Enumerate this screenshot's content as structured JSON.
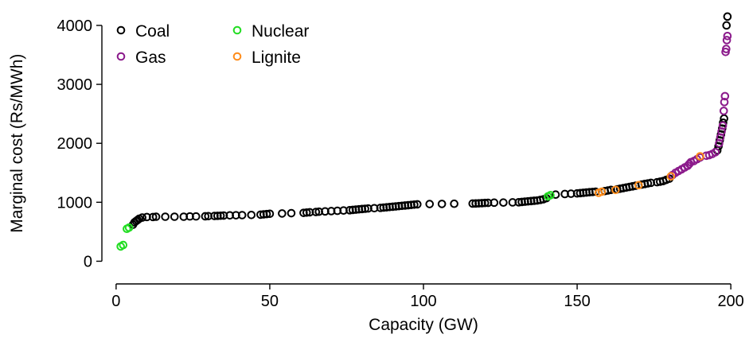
{
  "chart_data": {
    "type": "scatter",
    "title": "",
    "xlabel": "Capacity (GW)",
    "ylabel": "Marginal cost (Rs/MWh)",
    "xlim": [
      -1,
      201
    ],
    "ylim": [
      -250,
      4350
    ],
    "xticks": [
      0,
      50,
      100,
      150,
      200
    ],
    "yticks": [
      0,
      1000,
      2000,
      3000,
      4000
    ],
    "grid": false,
    "legend_position": "top-left",
    "series": [
      {
        "name": "Coal",
        "color": "#000000",
        "marker": "hollow-circle",
        "points": [
          [
            5.5,
            620
          ],
          [
            6.0,
            660
          ],
          [
            6.5,
            680
          ],
          [
            7.0,
            700
          ],
          [
            7.5,
            720
          ],
          [
            8.5,
            740
          ],
          [
            10,
            750
          ],
          [
            12,
            750
          ],
          [
            13,
            755
          ],
          [
            16,
            755
          ],
          [
            19,
            755
          ],
          [
            22,
            755
          ],
          [
            24,
            760
          ],
          [
            26,
            760
          ],
          [
            29,
            762
          ],
          [
            30,
            765
          ],
          [
            32,
            768
          ],
          [
            33,
            770
          ],
          [
            34,
            772
          ],
          [
            35,
            775
          ],
          [
            37,
            778
          ],
          [
            39,
            780
          ],
          [
            41,
            782
          ],
          [
            44,
            785
          ],
          [
            47,
            790
          ],
          [
            48,
            795
          ],
          [
            49,
            800
          ],
          [
            50,
            805
          ],
          [
            54,
            810
          ],
          [
            57,
            815
          ],
          [
            61,
            820
          ],
          [
            62,
            825
          ],
          [
            63,
            830
          ],
          [
            65,
            835
          ],
          [
            66,
            840
          ],
          [
            68,
            845
          ],
          [
            70,
            850
          ],
          [
            72,
            855
          ],
          [
            74,
            860
          ],
          [
            76,
            865
          ],
          [
            77,
            870
          ],
          [
            78,
            875
          ],
          [
            79,
            880
          ],
          [
            80,
            885
          ],
          [
            81,
            890
          ],
          [
            82,
            895
          ],
          [
            84,
            900
          ],
          [
            86,
            905
          ],
          [
            87,
            910
          ],
          [
            88,
            915
          ],
          [
            89,
            920
          ],
          [
            90,
            925
          ],
          [
            91,
            930
          ],
          [
            92,
            935
          ],
          [
            93,
            940
          ],
          [
            94,
            945
          ],
          [
            95,
            950
          ],
          [
            96,
            955
          ],
          [
            97,
            960
          ],
          [
            98,
            965
          ],
          [
            102,
            970
          ],
          [
            106,
            972
          ],
          [
            110,
            975
          ],
          [
            116,
            978
          ],
          [
            117,
            980
          ],
          [
            118,
            982
          ],
          [
            119,
            985
          ],
          [
            120,
            988
          ],
          [
            121,
            990
          ],
          [
            123,
            993
          ],
          [
            126,
            995
          ],
          [
            129,
            998
          ],
          [
            131,
            1000
          ],
          [
            132,
            1005
          ],
          [
            133,
            1010
          ],
          [
            134,
            1015
          ],
          [
            135,
            1020
          ],
          [
            136,
            1025
          ],
          [
            137,
            1030
          ],
          [
            138,
            1040
          ],
          [
            139,
            1050
          ],
          [
            140,
            1070
          ],
          [
            143,
            1130
          ],
          [
            146,
            1140
          ],
          [
            148,
            1145
          ],
          [
            150,
            1150
          ],
          [
            151,
            1155
          ],
          [
            152,
            1160
          ],
          [
            153,
            1165
          ],
          [
            154,
            1170
          ],
          [
            155,
            1175
          ],
          [
            156,
            1180
          ],
          [
            159,
            1190
          ],
          [
            160,
            1200
          ],
          [
            161,
            1210
          ],
          [
            163,
            1220
          ],
          [
            164,
            1230
          ],
          [
            165,
            1240
          ],
          [
            166,
            1250
          ],
          [
            167,
            1260
          ],
          [
            168,
            1270
          ],
          [
            169,
            1280
          ],
          [
            171,
            1300
          ],
          [
            172,
            1310
          ],
          [
            173,
            1320
          ],
          [
            174,
            1330
          ],
          [
            176,
            1340
          ],
          [
            177,
            1350
          ],
          [
            178,
            1360
          ],
          [
            179,
            1380
          ],
          [
            180,
            1400
          ],
          [
            195.6,
            1880
          ],
          [
            196.0,
            1950
          ],
          [
            196.4,
            2050
          ],
          [
            196.8,
            2150
          ],
          [
            197.2,
            2250
          ],
          [
            197.5,
            2350
          ],
          [
            197.8,
            2420
          ],
          [
            198.6,
            4000
          ],
          [
            198.9,
            4150
          ]
        ]
      },
      {
        "name": "Nuclear",
        "color": "#22dd22",
        "marker": "hollow-circle",
        "points": [
          [
            1.5,
            250
          ],
          [
            2.3,
            275
          ],
          [
            3.5,
            550
          ],
          [
            4.2,
            570
          ],
          [
            140.5,
            1100
          ],
          [
            141.3,
            1120
          ]
        ]
      },
      {
        "name": "Gas",
        "color": "#8b1a8b",
        "marker": "hollow-circle",
        "points": [
          [
            181,
            1460
          ],
          [
            182,
            1500
          ],
          [
            183,
            1530
          ],
          [
            184,
            1560
          ],
          [
            185,
            1590
          ],
          [
            186,
            1620
          ],
          [
            186.5,
            1650
          ],
          [
            187,
            1680
          ],
          [
            188,
            1700
          ],
          [
            189,
            1730
          ],
          [
            190,
            1760
          ],
          [
            192,
            1790
          ],
          [
            193,
            1800
          ],
          [
            194,
            1820
          ],
          [
            195,
            1850
          ],
          [
            196.2,
            2000
          ],
          [
            196.6,
            2100
          ],
          [
            197.0,
            2200
          ],
          [
            197.4,
            2300
          ],
          [
            197.7,
            2550
          ],
          [
            197.9,
            2700
          ],
          [
            198.1,
            2800
          ],
          [
            198.3,
            3550
          ],
          [
            198.5,
            3600
          ],
          [
            198.7,
            3750
          ],
          [
            198.9,
            3820
          ]
        ]
      },
      {
        "name": "Lignite",
        "color": "#ff8c1a",
        "marker": "hollow-circle",
        "points": [
          [
            157,
            1160
          ],
          [
            158,
            1180
          ],
          [
            162.5,
            1210
          ],
          [
            170,
            1290
          ],
          [
            180.5,
            1440
          ],
          [
            190,
            1780
          ]
        ]
      }
    ]
  }
}
